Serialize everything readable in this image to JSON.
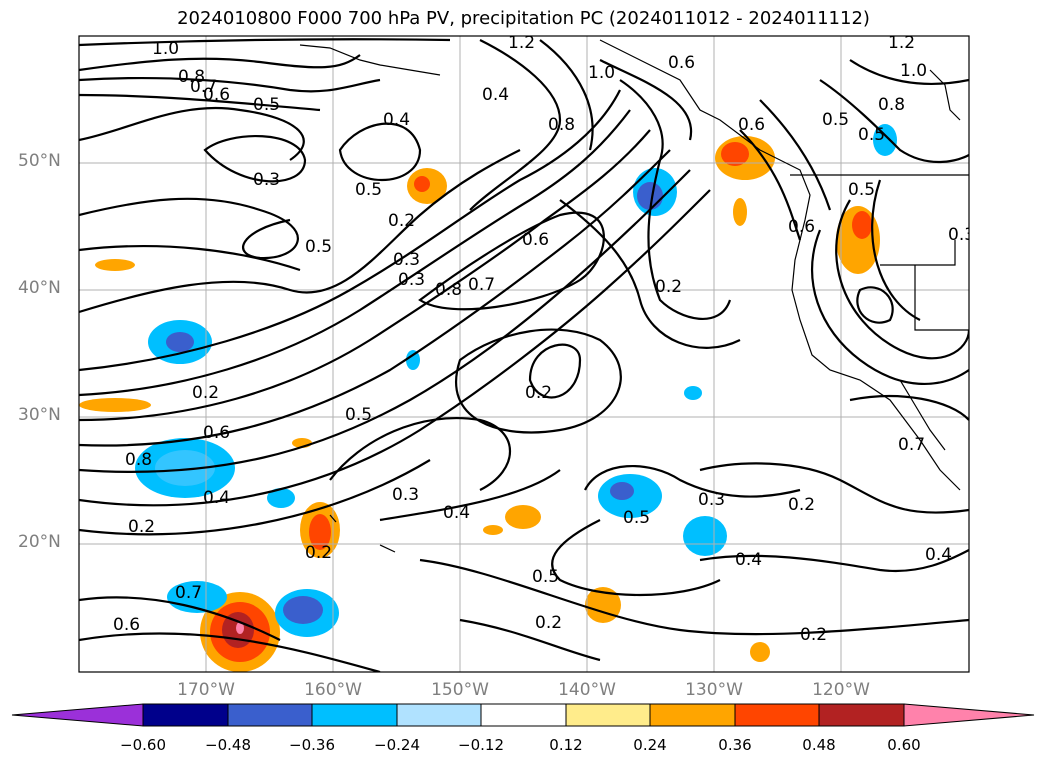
{
  "title": "2024010800 F000 700 hPa PV, precipitation PC (2024011012 - 2024011112)",
  "lat_labels": [
    "50°N",
    "40°N",
    "30°N",
    "20°N"
  ],
  "lon_labels": [
    "170°W",
    "160°W",
    "150°W",
    "140°W",
    "130°W",
    "120°W"
  ],
  "colorbar": {
    "ticks": [
      "−0.60",
      "−0.48",
      "−0.36",
      "−0.24",
      "−0.12",
      "0.12",
      "0.24",
      "0.36",
      "0.48",
      "0.60"
    ],
    "colors": [
      "#9b30d9",
      "#00008b",
      "#3a5fcd",
      "#00bfff",
      "#b0e2ff",
      "#ffffff",
      "#ffec8b",
      "#ffa500",
      "#ff4500",
      "#b22222",
      "#ff82ab"
    ]
  },
  "contour_labels": [
    "1.0",
    "0.8",
    "0.7",
    "0.6",
    "0.5",
    "0.4",
    "0.3",
    "0.5",
    "0.5",
    "0.2",
    "0.3",
    "0.3",
    "0.2",
    "0.6",
    "0.4",
    "0.8",
    "1.2",
    "1.0",
    "0.8",
    "0.7",
    "0.6",
    "0.8",
    "0.2",
    "0.2",
    "0.5",
    "0.3",
    "0.4",
    "0.5",
    "0.2",
    "0.5",
    "0.2",
    "0.6",
    "0.7",
    "0.2",
    "0.2",
    "0.3",
    "0.4",
    "0.2",
    "0.6",
    "0.5",
    "0.4",
    "1.0",
    "1.2",
    "0.8",
    "0.5",
    "0.3",
    "0.6",
    "0.7",
    "0.5",
    "0.6",
    "0.4"
  ]
}
